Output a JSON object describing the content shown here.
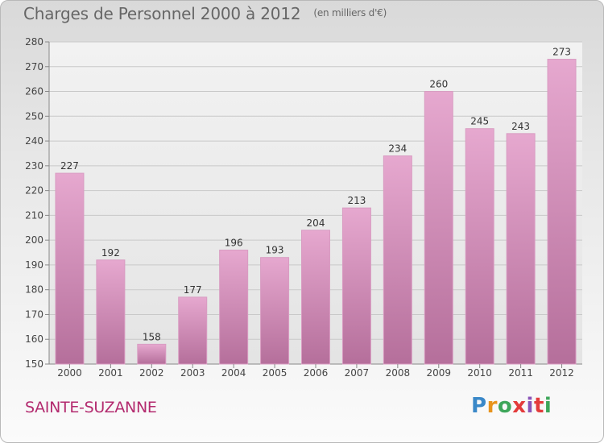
{
  "title": "Charges de Personnel 2000 à 2012",
  "subtitle": "(en milliers d'€)",
  "city": "SAINTE-SUZANNE",
  "logo": {
    "letters": [
      "P",
      "r",
      "o",
      "x",
      "i",
      "t",
      "i"
    ],
    "colors": [
      "#3a88c8",
      "#e8941c",
      "#3ea65a",
      "#e33b3b",
      "#8a54b8",
      "#e33b3b",
      "#3ea65a"
    ]
  },
  "colors": {
    "bar_top": "#e6a8cf",
    "bar_bottom": "#b56f9b",
    "city_text": "#b32b6f"
  },
  "chart_data": {
    "type": "bar",
    "title": "Charges de Personnel 2000 à 2012",
    "subtitle": "(en milliers d'€)",
    "categories": [
      "2000",
      "2001",
      "2002",
      "2003",
      "2004",
      "2005",
      "2006",
      "2007",
      "2008",
      "2009",
      "2010",
      "2011",
      "2012"
    ],
    "values": [
      227,
      192,
      158,
      177,
      196,
      193,
      204,
      213,
      234,
      260,
      245,
      243,
      273
    ],
    "ylim": [
      150,
      280
    ],
    "yticks": [
      150,
      160,
      170,
      180,
      190,
      200,
      210,
      220,
      230,
      240,
      250,
      260,
      270,
      280
    ],
    "grid": true,
    "data_labels": true
  }
}
